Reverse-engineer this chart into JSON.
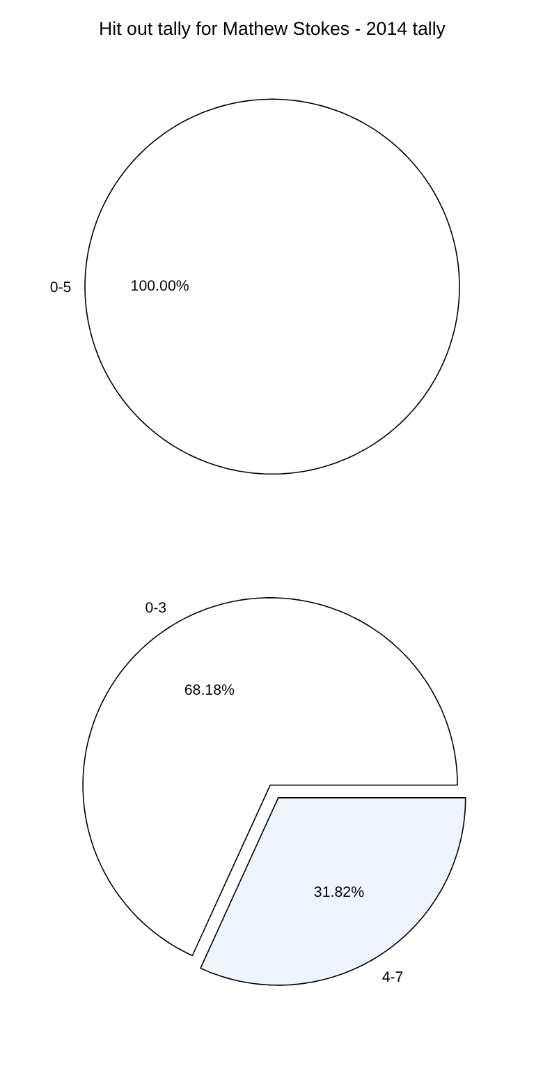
{
  "chart_data": [
    {
      "type": "pie",
      "title": "Hit out tally for Mathew Stokes - 2014 tally",
      "categories": [
        "0-5"
      ],
      "values": [
        100
      ],
      "colors": [
        "#ffffff"
      ],
      "value_labels": [
        "100.00%"
      ]
    },
    {
      "type": "pie",
      "categories": [
        "0-3",
        "4-7"
      ],
      "values": [
        68.18,
        31.82
      ],
      "colors": [
        "#ffffff",
        "#eef3fc"
      ],
      "value_labels": [
        "68.18%",
        "31.82%"
      ]
    }
  ]
}
